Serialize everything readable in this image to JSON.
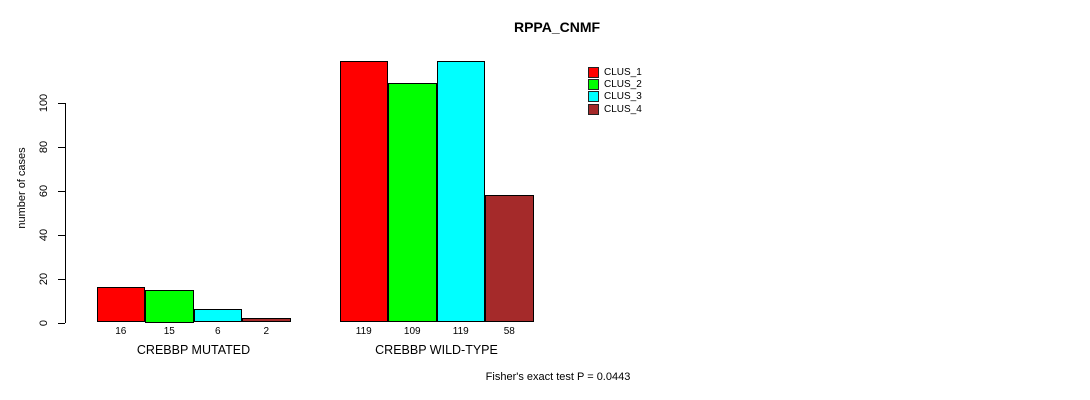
{
  "chart_data": {
    "type": "bar",
    "title": "RPPA_CNMF",
    "ylabel": "number of cases",
    "yticks": [
      0,
      20,
      40,
      60,
      80,
      100
    ],
    "ylim": [
      0,
      100
    ],
    "grid": false,
    "legend_position": "right",
    "categories": [
      "CREBBP MUTATED",
      "CREBBP WILD-TYPE"
    ],
    "series": [
      {
        "name": "CLUS_1",
        "color": "#FF0000",
        "values": [
          16,
          119
        ]
      },
      {
        "name": "CLUS_2",
        "color": "#00FF00",
        "values": [
          15,
          109
        ]
      },
      {
        "name": "CLUS_3",
        "color": "#00FFFF",
        "values": [
          6,
          119
        ]
      },
      {
        "name": "CLUS_4",
        "color": "#A52A2A",
        "values": [
          2,
          58
        ]
      }
    ],
    "bar_value_labels": [
      16,
      15,
      6,
      2,
      119,
      109,
      119,
      58
    ],
    "annotation": "Fisher's exact test P = 0.0443"
  }
}
